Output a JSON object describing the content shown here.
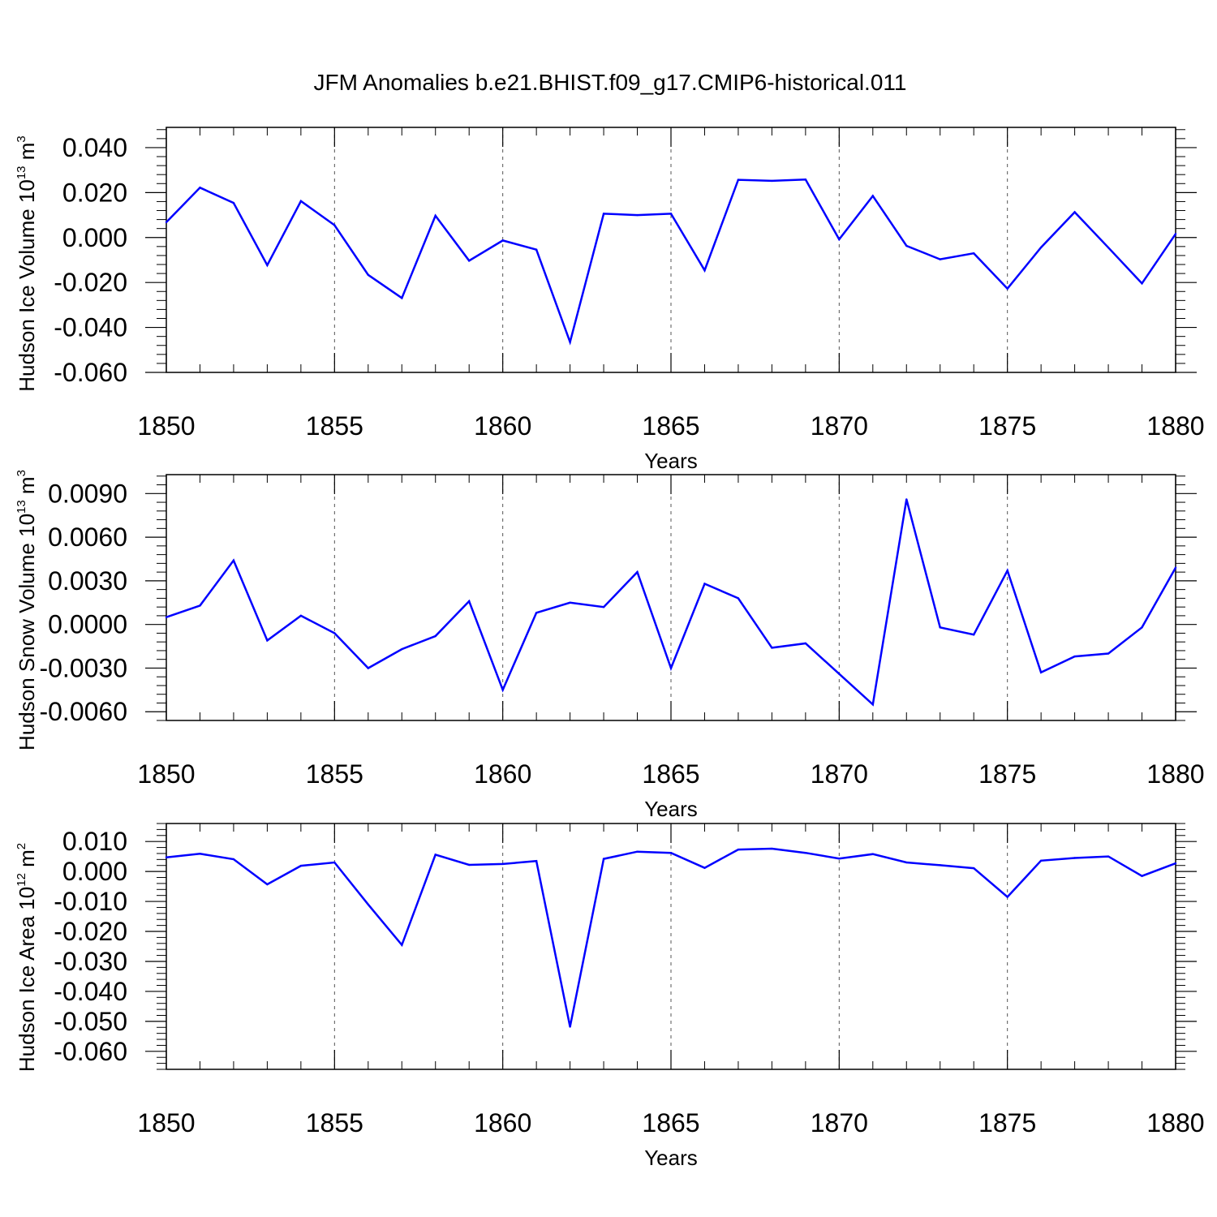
{
  "title": "JFM Anomalies b.e21.BHIST.f09_g17.CMIP6-historical.011",
  "chart_data": [
    {
      "type": "line",
      "xlabel": "Years",
      "ylabel": {
        "text": "Hudson Ice Volume 10",
        "exp": "13",
        "unit": " m",
        "unit_exp": "3"
      },
      "xlim": [
        1850,
        1880
      ],
      "ylim": [
        -0.06,
        0.049
      ],
      "x_ticks": [
        "1850",
        "1855",
        "1860",
        "1865",
        "1870",
        "1875",
        "1880"
      ],
      "y_ticks": [
        {
          "value": 0.04,
          "label": "0.040"
        },
        {
          "value": 0.02,
          "label": "0.020"
        },
        {
          "value": 0.0,
          "label": "0.000"
        },
        {
          "value": -0.02,
          "label": "-0.020"
        },
        {
          "value": -0.04,
          "label": "-0.040"
        },
        {
          "value": -0.06,
          "label": "-0.060"
        }
      ],
      "y_minor_step": 0.004,
      "grid": "vertical dashed at major x ticks",
      "color": "#0000ff",
      "x": [
        1850,
        1851,
        1852,
        1853,
        1854,
        1855,
        1856,
        1857,
        1858,
        1859,
        1860,
        1861,
        1862,
        1863,
        1864,
        1865,
        1866,
        1867,
        1868,
        1869,
        1870,
        1871,
        1872,
        1873,
        1874,
        1875,
        1876,
        1877,
        1878,
        1879,
        1880
      ],
      "values": [
        0.0068,
        0.0222,
        0.0154,
        -0.0123,
        0.0162,
        0.0055,
        -0.0166,
        -0.0269,
        0.0097,
        -0.0103,
        -0.0013,
        -0.0054,
        -0.0465,
        0.0106,
        0.01,
        0.0106,
        -0.0146,
        0.0257,
        0.0252,
        0.0258,
        -0.0008,
        0.0185,
        -0.0037,
        -0.0097,
        -0.007,
        -0.0227,
        -0.0044,
        0.0113,
        -0.0045,
        -0.0204,
        0.0016
      ]
    },
    {
      "type": "line",
      "xlabel": "Years",
      "ylabel": {
        "text": "Hudson Snow Volume 10",
        "exp": "13",
        "unit": " m",
        "unit_exp": "3"
      },
      "xlim": [
        1850,
        1880
      ],
      "ylim": [
        -0.0066,
        0.0103
      ],
      "x_ticks": [
        "1850",
        "1855",
        "1860",
        "1865",
        "1870",
        "1875",
        "1880"
      ],
      "y_ticks": [
        {
          "value": 0.009,
          "label": "0.0090"
        },
        {
          "value": 0.006,
          "label": "0.0060"
        },
        {
          "value": 0.003,
          "label": "0.0030"
        },
        {
          "value": 0.0,
          "label": "0.0000"
        },
        {
          "value": -0.003,
          "label": "-0.0030"
        },
        {
          "value": -0.006,
          "label": "-0.0060"
        }
      ],
      "y_minor_step": 0.0006,
      "grid": "vertical dashed at major x ticks",
      "color": "#0000ff",
      "x": [
        1850,
        1851,
        1852,
        1853,
        1854,
        1855,
        1856,
        1857,
        1858,
        1859,
        1860,
        1861,
        1862,
        1863,
        1864,
        1865,
        1866,
        1867,
        1868,
        1869,
        1870,
        1871,
        1872,
        1873,
        1874,
        1875,
        1876,
        1877,
        1878,
        1879,
        1880
      ],
      "values": [
        0.0005,
        0.0013,
        0.0044,
        -0.0011,
        0.0006,
        -0.0006,
        -0.003,
        -0.0017,
        -0.0008,
        0.0016,
        -0.0045,
        0.0008,
        0.0015,
        0.0012,
        0.0036,
        -0.003,
        0.0028,
        0.0018,
        -0.0016,
        -0.0013,
        -0.0034,
        -0.0055,
        0.0086,
        -0.0002,
        -0.0007,
        0.0037,
        -0.0033,
        -0.0022,
        -0.002,
        -0.0002,
        0.0039
      ]
    },
    {
      "type": "line",
      "xlabel": "Years",
      "ylabel": {
        "text": "Hudson Ice Area 10",
        "exp": "12",
        "unit": " m",
        "unit_exp": "2"
      },
      "xlim": [
        1850,
        1880
      ],
      "ylim": [
        -0.066,
        0.016
      ],
      "x_ticks": [
        "1850",
        "1855",
        "1860",
        "1865",
        "1870",
        "1875",
        "1880"
      ],
      "y_ticks": [
        {
          "value": 0.01,
          "label": "0.010"
        },
        {
          "value": 0.0,
          "label": "0.000"
        },
        {
          "value": -0.01,
          "label": "-0.010"
        },
        {
          "value": -0.02,
          "label": "-0.020"
        },
        {
          "value": -0.03,
          "label": "-0.030"
        },
        {
          "value": -0.04,
          "label": "-0.040"
        },
        {
          "value": -0.05,
          "label": "-0.050"
        },
        {
          "value": -0.06,
          "label": "-0.060"
        }
      ],
      "y_minor_step": 0.002,
      "grid": "vertical dashed at major x ticks",
      "color": "#0000ff",
      "x": [
        1850,
        1851,
        1852,
        1853,
        1854,
        1855,
        1856,
        1857,
        1858,
        1859,
        1860,
        1861,
        1862,
        1863,
        1864,
        1865,
        1866,
        1867,
        1868,
        1869,
        1870,
        1871,
        1872,
        1873,
        1874,
        1875,
        1876,
        1877,
        1878,
        1879,
        1880
      ],
      "values": [
        0.0047,
        0.0059,
        0.0041,
        -0.0043,
        0.0019,
        0.003,
        -0.011,
        -0.0245,
        0.0056,
        0.0022,
        0.0025,
        0.0035,
        -0.0518,
        0.0042,
        0.0066,
        0.0062,
        0.0012,
        0.0073,
        0.0076,
        0.0062,
        0.0043,
        0.0058,
        0.003,
        0.0021,
        0.0011,
        -0.0085,
        0.0036,
        0.0045,
        0.005,
        -0.0015,
        0.0027
      ]
    }
  ]
}
